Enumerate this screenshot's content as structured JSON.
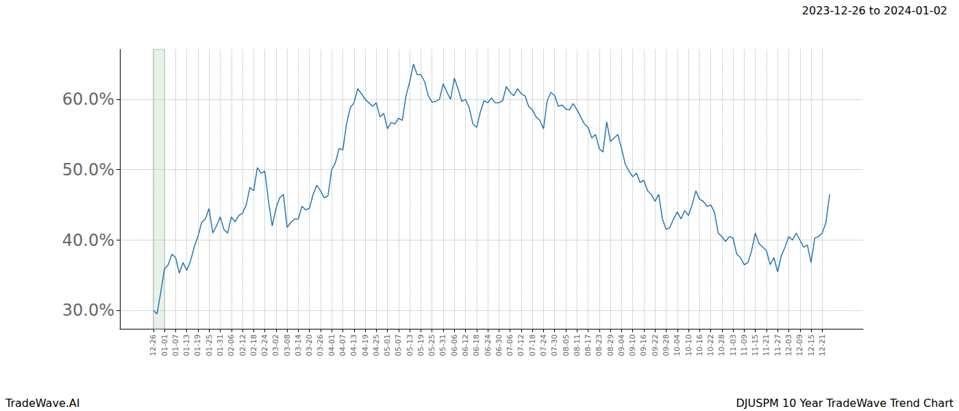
{
  "chart_data": {
    "type": "line",
    "title": "2023-12-26 to 2024-01-02",
    "annotations": [
      "TradeWave.AI",
      "DJUSPM 10 Year TradeWave Trend Chart"
    ],
    "color": "#1f77b4",
    "grid": true,
    "highlight": [
      "12-26",
      "01-01"
    ],
    "ylim": [
      27.4,
      67.1
    ],
    "yticks": [
      {
        "value": 30,
        "label": "30.0%"
      },
      {
        "value": 40,
        "label": "40.0%"
      },
      {
        "value": 50,
        "label": "50.0%"
      },
      {
        "value": 60,
        "label": "60.0%"
      }
    ],
    "categories": [
      null,
      null,
      null,
      null,
      null,
      null,
      null,
      null,
      null,
      "12-26",
      null,
      null,
      "01-01",
      null,
      null,
      "01-07",
      null,
      null,
      "01-13",
      null,
      null,
      "01-19",
      null,
      null,
      "01-25",
      null,
      null,
      "01-31",
      null,
      null,
      "02-06",
      null,
      null,
      "02-12",
      null,
      null,
      "02-18",
      null,
      null,
      "02-24",
      null,
      null,
      "03-02",
      null,
      null,
      "03-08",
      null,
      null,
      "03-14",
      null,
      null,
      "03-20",
      null,
      null,
      "03-26",
      null,
      null,
      "04-01",
      null,
      null,
      "04-07",
      null,
      null,
      "04-13",
      null,
      null,
      "04-19",
      null,
      null,
      "04-25",
      null,
      null,
      "05-01",
      null,
      null,
      "05-07",
      null,
      null,
      "05-13",
      null,
      null,
      "05-19",
      null,
      null,
      "05-25",
      null,
      null,
      "05-31",
      null,
      null,
      "06-06",
      null,
      null,
      "06-12",
      null,
      null,
      "06-18",
      null,
      null,
      "06-24",
      null,
      null,
      "06-30",
      null,
      null,
      "07-06",
      null,
      null,
      "07-12",
      null,
      null,
      "07-18",
      null,
      null,
      "07-24",
      null,
      null,
      "07-30",
      null,
      null,
      "08-05",
      null,
      null,
      "08-11",
      null,
      null,
      "08-17",
      null,
      null,
      "08-23",
      null,
      null,
      "08-29",
      null,
      null,
      "09-04",
      null,
      null,
      "09-10",
      null,
      null,
      "09-16",
      null,
      null,
      "09-22",
      null,
      null,
      "09-28",
      null,
      null,
      "10-04",
      null,
      null,
      "10-10",
      null,
      null,
      "10-16",
      null,
      null,
      "10-22",
      null,
      null,
      "10-28",
      null,
      null,
      "11-03",
      null,
      null,
      "11-09",
      null,
      null,
      "11-15",
      null,
      null,
      "11-21",
      null,
      null,
      "11-27",
      null,
      null,
      "12-03",
      null,
      null,
      "12-09",
      null,
      null,
      "12-15",
      null,
      null,
      "12-21",
      null,
      null,
      null,
      null,
      null,
      null,
      null,
      null,
      null,
      null,
      null
    ],
    "values": [
      null,
      null,
      null,
      null,
      null,
      null,
      null,
      null,
      null,
      30.0,
      29.5,
      32.6,
      35.9,
      36.5,
      38.0,
      37.5,
      35.3,
      36.8,
      35.7,
      37.0,
      39.0,
      40.5,
      42.5,
      43.0,
      44.5,
      41.0,
      42.0,
      43.3,
      41.5,
      41.0,
      43.3,
      42.6,
      43.5,
      43.8,
      45.0,
      47.5,
      47.0,
      50.3,
      49.5,
      49.8,
      45.5,
      42.0,
      44.5,
      46.0,
      46.5,
      41.8,
      42.5,
      43.0,
      43.0,
      44.8,
      44.3,
      44.5,
      46.5,
      47.8,
      47.0,
      46.0,
      46.3,
      50.0,
      51.0,
      53.0,
      52.8,
      56.5,
      58.8,
      59.5,
      61.5,
      60.8,
      60.0,
      59.5,
      59.0,
      59.5,
      57.5,
      58.0,
      55.8,
      56.7,
      56.5,
      57.3,
      57.0,
      60.5,
      62.5,
      65.0,
      63.5,
      63.5,
      62.5,
      60.5,
      59.6,
      59.7,
      60.0,
      62.2,
      61.0,
      60.0,
      63.0,
      61.5,
      59.7,
      60.0,
      58.8,
      56.5,
      56.0,
      58.2,
      59.8,
      59.5,
      60.2,
      59.5,
      59.5,
      59.8,
      61.8,
      61.0,
      60.5,
      61.5,
      60.8,
      60.5,
      59.0,
      58.5,
      57.5,
      57.0,
      55.8,
      59.8,
      61.0,
      60.5,
      59.0,
      59.2,
      58.6,
      58.5,
      59.4,
      58.5,
      57.5,
      56.5,
      56.0,
      54.5,
      55.0,
      53.0,
      52.5,
      56.8,
      54.0,
      54.5,
      55.0,
      53.0,
      50.8,
      49.8,
      49.0,
      49.5,
      48.2,
      48.5,
      47.0,
      46.5,
      45.5,
      46.5,
      43.0,
      41.5,
      41.8,
      43.0,
      44.0,
      43.0,
      44.2,
      43.5,
      45.0,
      47.0,
      45.8,
      45.5,
      44.8,
      45.0,
      44.0,
      41.0,
      40.5,
      39.8,
      40.5,
      40.3,
      38.0,
      37.5,
      36.5,
      36.8,
      38.5,
      41.0,
      39.5,
      39.0,
      38.5,
      36.5,
      37.5,
      35.5,
      37.8,
      39.0,
      40.5,
      40.0,
      41.0,
      40.0,
      39.0,
      39.3,
      36.8,
      40.3,
      40.5,
      41.0,
      42.5,
      46.5,
      null,
      null,
      null,
      null,
      null,
      null,
      null,
      null,
      null
    ]
  }
}
